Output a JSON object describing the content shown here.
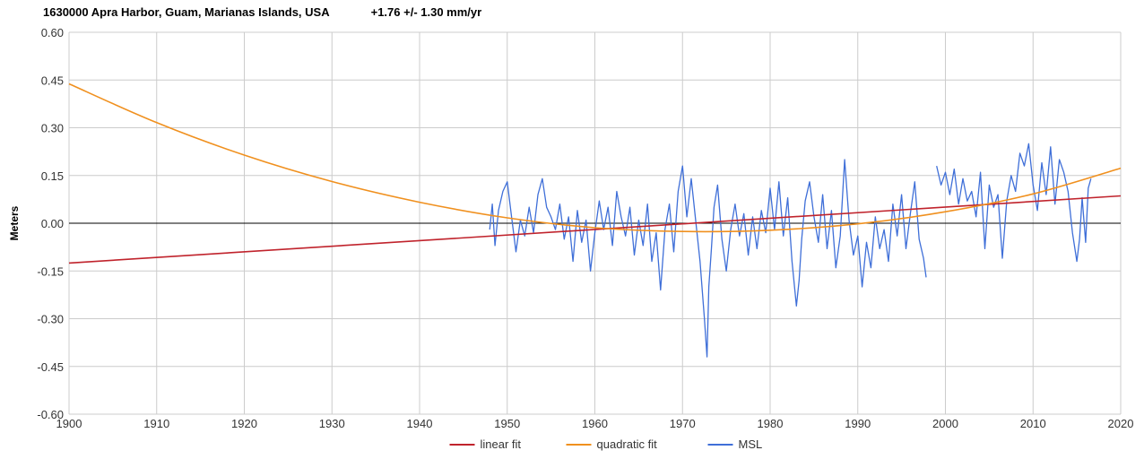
{
  "title": {
    "station": "1630000 Apra Harbor, Guam, Marianas Islands, USA",
    "rate": "+1.76 +/- 1.30 mm/yr"
  },
  "colors": {
    "linear_fit": "#c0232c",
    "quadratic_fit": "#f0901e",
    "msl": "#3f6fd8",
    "grid": "#cccccc",
    "zero_line": "#000000"
  },
  "chart_data": {
    "type": "line",
    "title": "1630000 Apra Harbor, Guam, Marianas Islands, USA",
    "subtitle": "+1.76 +/- 1.30 mm/yr",
    "xlabel": "",
    "ylabel": "Meters",
    "xlim": [
      1900,
      2020
    ],
    "ylim": [
      -0.6,
      0.6
    ],
    "x_ticks": [
      1900,
      1910,
      1920,
      1930,
      1940,
      1950,
      1960,
      1970,
      1980,
      1990,
      2000,
      2010,
      2020
    ],
    "y_ticks": [
      -0.6,
      -0.45,
      -0.3,
      -0.15,
      0.0,
      0.15,
      0.3,
      0.45,
      0.6
    ],
    "y_tick_labels": [
      "-0.60",
      "-0.45",
      "-0.30",
      "-0.15",
      "0.00",
      "0.15",
      "0.30",
      "0.45",
      "0.60"
    ],
    "grid": true,
    "legend_position": "bottom",
    "series": [
      {
        "name": "linear fit",
        "x": [
          1900,
          2020
        ],
        "y": [
          -0.125,
          0.086
        ]
      },
      {
        "name": "quadratic fit",
        "x": [
          1900,
          1910,
          1920,
          1930,
          1940,
          1950,
          1960,
          1970,
          1980,
          1990,
          2000,
          2010,
          2020
        ],
        "y": [
          0.438,
          0.316,
          0.214,
          0.131,
          0.066,
          0.017,
          -0.014,
          -0.026,
          -0.022,
          -0.002,
          0.036,
          0.092,
          0.173
        ]
      },
      {
        "name": "MSL",
        "x": [
          1948.0,
          1948.3,
          1948.6,
          1949.0,
          1949.5,
          1950.0,
          1950.5,
          1951.0,
          1951.5,
          1952.0,
          1952.5,
          1953.0,
          1953.5,
          1954.0,
          1954.5,
          1955.0,
          1955.5,
          1956.0,
          1956.5,
          1957.0,
          1957.5,
          1958.0,
          1958.5,
          1959.0,
          1959.5,
          1960.0,
          1960.5,
          1961.0,
          1961.5,
          1962.0,
          1962.5,
          1963.0,
          1963.5,
          1964.0,
          1964.5,
          1965.0,
          1965.5,
          1966.0,
          1966.5,
          1967.0,
          1967.5,
          1968.0,
          1968.5,
          1969.0,
          1969.5,
          1970.0,
          1970.5,
          1971.0,
          1971.5,
          1972.0,
          1972.5,
          1972.8,
          1973.0,
          1973.3,
          1973.6,
          1974.0,
          1974.5,
          1975.0,
          1975.5,
          1976.0,
          1976.5,
          1977.0,
          1977.5,
          1978.0,
          1978.5,
          1979.0,
          1979.5,
          1980.0,
          1980.5,
          1981.0,
          1981.5,
          1982.0,
          1982.5,
          1983.0,
          1983.3,
          1983.6,
          1984.0,
          1984.5,
          1985.0,
          1985.5,
          1986.0,
          1986.5,
          1987.0,
          1987.5,
          1988.0,
          1988.5,
          1989.0,
          1989.5,
          1990.0,
          1990.5,
          1991.0,
          1991.5,
          1992.0,
          1992.5,
          1993.0,
          1993.5,
          1994.0,
          1994.5,
          1995.0,
          1995.5,
          1996.0,
          1996.5,
          1997.0,
          1997.5,
          1997.8,
          null,
          1999.0,
          1999.5,
          2000.0,
          2000.5,
          2001.0,
          2001.5,
          2002.0,
          2002.5,
          2003.0,
          2003.5,
          2004.0,
          2004.5,
          2005.0,
          2005.5,
          2006.0,
          2006.5,
          2007.0,
          2007.5,
          2008.0,
          2008.5,
          2009.0,
          2009.5,
          2010.0,
          2010.5,
          2011.0,
          2011.5,
          2012.0,
          2012.5,
          2013.0,
          2013.5,
          2014.0,
          2014.5,
          2015.0,
          2015.3,
          2015.6,
          2016.0,
          2016.3,
          2016.6
        ],
        "y": [
          -0.02,
          0.06,
          -0.07,
          0.04,
          0.1,
          0.13,
          0.02,
          -0.09,
          0.01,
          -0.04,
          0.05,
          -0.03,
          0.09,
          0.14,
          0.05,
          0.02,
          -0.02,
          0.06,
          -0.05,
          0.02,
          -0.12,
          0.04,
          -0.06,
          0.01,
          -0.15,
          -0.03,
          0.07,
          -0.02,
          0.05,
          -0.07,
          0.1,
          0.02,
          -0.04,
          0.05,
          -0.1,
          0.01,
          -0.07,
          0.06,
          -0.12,
          -0.03,
          -0.21,
          -0.02,
          0.06,
          -0.09,
          0.1,
          0.18,
          0.02,
          0.14,
          0.01,
          -0.12,
          -0.3,
          -0.42,
          -0.2,
          -0.08,
          0.05,
          0.12,
          -0.05,
          -0.15,
          -0.02,
          0.06,
          -0.04,
          0.03,
          -0.1,
          0.02,
          -0.08,
          0.04,
          -0.03,
          0.11,
          -0.02,
          0.13,
          -0.04,
          0.08,
          -0.12,
          -0.26,
          -0.18,
          -0.05,
          0.07,
          0.13,
          0.02,
          -0.06,
          0.09,
          -0.08,
          0.04,
          -0.14,
          -0.04,
          0.2,
          0.01,
          -0.1,
          -0.04,
          -0.2,
          -0.06,
          -0.14,
          0.02,
          -0.08,
          -0.02,
          -0.12,
          0.06,
          -0.04,
          0.09,
          -0.08,
          0.03,
          0.13,
          -0.05,
          -0.11,
          -0.17,
          null,
          0.18,
          0.12,
          0.16,
          0.09,
          0.17,
          0.06,
          0.14,
          0.07,
          0.1,
          0.02,
          0.16,
          -0.08,
          0.12,
          0.05,
          0.09,
          -0.11,
          0.07,
          0.15,
          0.1,
          0.22,
          0.18,
          0.25,
          0.12,
          0.04,
          0.19,
          0.09,
          0.24,
          0.06,
          0.2,
          0.16,
          0.1,
          -0.03,
          -0.12,
          -0.05,
          0.08,
          -0.06,
          0.11,
          0.14
        ]
      }
    ]
  }
}
